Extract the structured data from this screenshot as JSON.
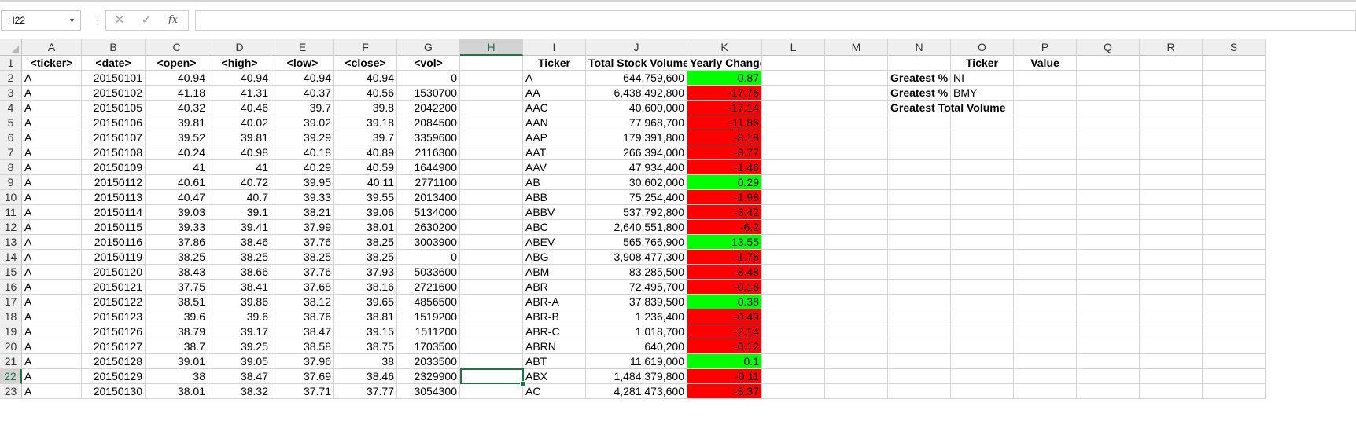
{
  "formula_bar": {
    "name_box": "H22",
    "formula": ""
  },
  "columns": [
    "A",
    "B",
    "C",
    "D",
    "E",
    "F",
    "G",
    "H",
    "I",
    "J",
    "K",
    "L",
    "M",
    "N",
    "O",
    "P",
    "Q",
    "R",
    "S"
  ],
  "selected": {
    "column": "H",
    "row": 22
  },
  "raw_headers": [
    "<ticker>",
    "<date>",
    "<open>",
    "<high>",
    "<low>",
    "<close>",
    "<vol>"
  ],
  "raw_rows": [
    [
      "A",
      "20150101",
      "40.94",
      "40.94",
      "40.94",
      "40.94",
      "0"
    ],
    [
      "A",
      "20150102",
      "41.18",
      "41.31",
      "40.37",
      "40.56",
      "1530700"
    ],
    [
      "A",
      "20150105",
      "40.32",
      "40.46",
      "39.7",
      "39.8",
      "2042200"
    ],
    [
      "A",
      "20150106",
      "39.81",
      "40.02",
      "39.02",
      "39.18",
      "2084500"
    ],
    [
      "A",
      "20150107",
      "39.52",
      "39.81",
      "39.29",
      "39.7",
      "3359600"
    ],
    [
      "A",
      "20150108",
      "40.24",
      "40.98",
      "40.18",
      "40.89",
      "2116300"
    ],
    [
      "A",
      "20150109",
      "41",
      "41",
      "40.29",
      "40.59",
      "1644900"
    ],
    [
      "A",
      "20150112",
      "40.61",
      "40.72",
      "39.95",
      "40.11",
      "2771100"
    ],
    [
      "A",
      "20150113",
      "40.47",
      "40.7",
      "39.33",
      "39.55",
      "2013400"
    ],
    [
      "A",
      "20150114",
      "39.03",
      "39.1",
      "38.21",
      "39.06",
      "5134000"
    ],
    [
      "A",
      "20150115",
      "39.33",
      "39.41",
      "37.99",
      "38.01",
      "2630200"
    ],
    [
      "A",
      "20150116",
      "37.86",
      "38.46",
      "37.76",
      "38.25",
      "3003900"
    ],
    [
      "A",
      "20150119",
      "38.25",
      "38.25",
      "38.25",
      "38.25",
      "0"
    ],
    [
      "A",
      "20150120",
      "38.43",
      "38.66",
      "37.76",
      "37.93",
      "5033600"
    ],
    [
      "A",
      "20150121",
      "37.75",
      "38.41",
      "37.68",
      "38.16",
      "2721600"
    ],
    [
      "A",
      "20150122",
      "38.51",
      "39.86",
      "38.12",
      "39.65",
      "4856500"
    ],
    [
      "A",
      "20150123",
      "39.6",
      "39.6",
      "38.76",
      "38.81",
      "1519200"
    ],
    [
      "A",
      "20150126",
      "38.79",
      "39.17",
      "38.47",
      "39.15",
      "1511200"
    ],
    [
      "A",
      "20150127",
      "38.7",
      "39.25",
      "38.58",
      "38.75",
      "1703500"
    ],
    [
      "A",
      "20150128",
      "39.01",
      "39.05",
      "37.96",
      "38",
      "2033500"
    ],
    [
      "A",
      "20150129",
      "38",
      "38.47",
      "37.69",
      "38.46",
      "2329900"
    ],
    [
      "A",
      "20150130",
      "38.01",
      "38.32",
      "37.71",
      "37.77",
      "3054300"
    ]
  ],
  "summary_headers": [
    "Ticker",
    "Total Stock Volume",
    "Yearly Change"
  ],
  "summary_rows": [
    {
      "ticker": "A",
      "volume": "644,759,600",
      "change": "0.87",
      "status": "positive"
    },
    {
      "ticker": "AA",
      "volume": "6,438,492,800",
      "change": "-17.76",
      "status": "negative"
    },
    {
      "ticker": "AAC",
      "volume": "40,600,000",
      "change": "-17.14",
      "status": "negative"
    },
    {
      "ticker": "AAN",
      "volume": "77,968,700",
      "change": "-11.86",
      "status": "negative"
    },
    {
      "ticker": "AAP",
      "volume": "179,391,800",
      "change": "-8.18",
      "status": "negative"
    },
    {
      "ticker": "AAT",
      "volume": "266,394,000",
      "change": "-8.77",
      "status": "negative"
    },
    {
      "ticker": "AAV",
      "volume": "47,934,400",
      "change": "-1.46",
      "status": "negative"
    },
    {
      "ticker": "AB",
      "volume": "30,602,000",
      "change": "0.29",
      "status": "positive"
    },
    {
      "ticker": "ABB",
      "volume": "75,254,400",
      "change": "-1.98",
      "status": "negative"
    },
    {
      "ticker": "ABBV",
      "volume": "537,792,800",
      "change": "-3.42",
      "status": "negative"
    },
    {
      "ticker": "ABC",
      "volume": "2,640,551,800",
      "change": "-6.2",
      "status": "negative"
    },
    {
      "ticker": "ABEV",
      "volume": "565,766,900",
      "change": "13.55",
      "status": "positive"
    },
    {
      "ticker": "ABG",
      "volume": "3,908,477,300",
      "change": "-1.76",
      "status": "negative"
    },
    {
      "ticker": "ABM",
      "volume": "83,285,500",
      "change": "-8.48",
      "status": "negative"
    },
    {
      "ticker": "ABR",
      "volume": "72,495,700",
      "change": "-0.18",
      "status": "negative"
    },
    {
      "ticker": "ABR-A",
      "volume": "37,839,500",
      "change": "0.38",
      "status": "positive"
    },
    {
      "ticker": "ABR-B",
      "volume": "1,236,400",
      "change": "-0.49",
      "status": "negative"
    },
    {
      "ticker": "ABR-C",
      "volume": "1,018,700",
      "change": "-2.14",
      "status": "negative"
    },
    {
      "ticker": "ABRN",
      "volume": "640,200",
      "change": "-0.12",
      "status": "negative"
    },
    {
      "ticker": "ABT",
      "volume": "11,619,000",
      "change": "0.1",
      "status": "positive"
    },
    {
      "ticker": "ABX",
      "volume": "1,484,379,800",
      "change": "-0.11",
      "status": "negative"
    },
    {
      "ticker": "AC",
      "volume": "4,281,473,600",
      "change": "-3.37",
      "status": "negative"
    }
  ],
  "greatest": {
    "headers": [
      "Ticker",
      "Value"
    ],
    "rows": [
      {
        "label": "Greatest % I",
        "ticker": "NI"
      },
      {
        "label": "Greatest % D",
        "ticker": "BMY"
      },
      {
        "label": "Greatest Total Volume",
        "ticker": ""
      }
    ]
  },
  "colors": {
    "positive": "#00ff00",
    "negative": "#ff0000",
    "selection": "#217346"
  }
}
